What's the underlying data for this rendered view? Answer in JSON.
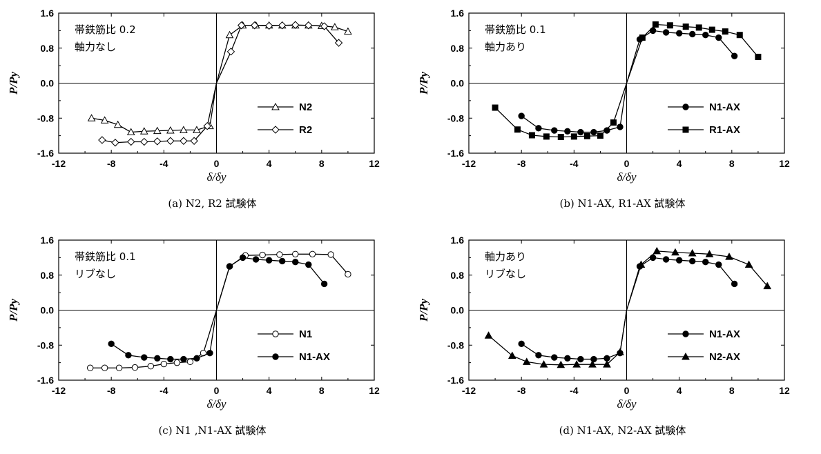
{
  "chart_data": [
    {
      "type": "line",
      "caption": "(a)  N2, R2 試験体",
      "xlabel": "δ/δy",
      "ylabel": "P/Py",
      "xlim": [
        -12,
        12
      ],
      "ylim": [
        -1.6,
        1.6
      ],
      "xticks": [
        "-12",
        "-8",
        "-4",
        "0",
        "4",
        "8",
        "12"
      ],
      "yticks": [
        "1.6",
        "0.8",
        "0.0",
        "-0.8",
        "-1.6"
      ],
      "annotation": [
        "帯鉄筋比 0.2",
        "軸力なし"
      ],
      "series": [
        {
          "name": "N2",
          "marker": "triangle-open",
          "x": [
            -9.5,
            -8.5,
            -7.5,
            -6.5,
            -5.5,
            -4.5,
            -3.5,
            -2.5,
            -1.5,
            -0.5,
            0,
            1,
            2,
            3,
            4,
            5,
            6,
            7,
            8,
            9,
            10
          ],
          "y": [
            -0.8,
            -0.85,
            -0.95,
            -1.12,
            -1.1,
            -1.09,
            -1.08,
            -1.07,
            -1.07,
            -0.98,
            0,
            1.1,
            1.32,
            1.32,
            1.32,
            1.32,
            1.32,
            1.32,
            1.31,
            1.28,
            1.18
          ]
        },
        {
          "name": "R2",
          "marker": "diamond-open",
          "x": [
            -8.7,
            -7.7,
            -6.5,
            -5.5,
            -4.5,
            -3.5,
            -2.5,
            -1.7,
            -0.7,
            0,
            1.1,
            1.9,
            2.9,
            4,
            5,
            6,
            7,
            8.2,
            9.3
          ],
          "y": [
            -1.3,
            -1.36,
            -1.34,
            -1.34,
            -1.33,
            -1.32,
            -1.32,
            -1.32,
            -0.98,
            0,
            0.72,
            1.32,
            1.32,
            1.31,
            1.32,
            1.33,
            1.32,
            1.3,
            0.92
          ]
        }
      ]
    },
    {
      "type": "line",
      "caption": "(b)  N1-AX, R1-AX 試験体",
      "xlabel": "δ/δy",
      "ylabel": "P/Py",
      "xlim": [
        -12,
        12
      ],
      "ylim": [
        -1.6,
        1.6
      ],
      "xticks": [
        "-12",
        "-8",
        "-4",
        "0",
        "4",
        "8",
        "12"
      ],
      "yticks": [
        "1.6",
        "0.8",
        "0.0",
        "-0.8",
        "-1.6"
      ],
      "annotation": [
        "帯鉄筋比 0.1",
        "軸力あり"
      ],
      "series": [
        {
          "name": "N1-AX",
          "marker": "circle-filled",
          "x": [
            -8,
            -6.7,
            -5.5,
            -4.5,
            -3.5,
            -2.5,
            -1.5,
            -0.5,
            0,
            1,
            2,
            3,
            4,
            5,
            6,
            7,
            8.2
          ],
          "y": [
            -0.75,
            -1.03,
            -1.08,
            -1.1,
            -1.12,
            -1.12,
            -1.08,
            -1.0,
            0,
            1.0,
            1.2,
            1.16,
            1.14,
            1.12,
            1.1,
            1.04,
            0.62
          ]
        },
        {
          "name": "R1-AX",
          "marker": "square-filled",
          "x": [
            -10,
            -8.3,
            -7.2,
            -6.1,
            -5,
            -4,
            -3,
            -2,
            -1,
            0,
            1.2,
            2.2,
            3.3,
            4.5,
            5.5,
            6.5,
            7.5,
            8.6,
            10
          ],
          "y": [
            -0.56,
            -1.06,
            -1.19,
            -1.22,
            -1.23,
            -1.22,
            -1.21,
            -1.2,
            -0.9,
            0,
            1.04,
            1.34,
            1.32,
            1.29,
            1.27,
            1.22,
            1.18,
            1.1,
            0.6
          ]
        }
      ]
    },
    {
      "type": "line",
      "caption": "(c)  N1 ,N1-AX 試験体",
      "xlabel": "δ/δy",
      "ylabel": "P/Py",
      "xlim": [
        -12,
        12
      ],
      "ylim": [
        -1.6,
        1.6
      ],
      "xticks": [
        "-12",
        "-8",
        "-4",
        "0",
        "4",
        "8",
        "12"
      ],
      "yticks": [
        "1.6",
        "0.8",
        "0.0",
        "-0.8",
        "-1.6"
      ],
      "annotation": [
        "帯鉄筋比 0.1",
        "リブなし"
      ],
      "series": [
        {
          "name": "N1",
          "marker": "circle-open",
          "x": [
            -9.6,
            -8.5,
            -7.4,
            -6.2,
            -5,
            -4,
            -3,
            -2,
            -1,
            0,
            1,
            2.2,
            3.5,
            4.8,
            6,
            7.3,
            8.7,
            10
          ],
          "y": [
            -1.32,
            -1.32,
            -1.32,
            -1.31,
            -1.28,
            -1.23,
            -1.2,
            -1.18,
            -0.98,
            0,
            1.0,
            1.25,
            1.26,
            1.27,
            1.28,
            1.28,
            1.27,
            0.82
          ]
        },
        {
          "name": "N1-AX",
          "marker": "circle-filled",
          "x": [
            -8,
            -6.7,
            -5.5,
            -4.5,
            -3.5,
            -2.5,
            -1.5,
            -0.5,
            0,
            1,
            2,
            3,
            4,
            5,
            6,
            7,
            8.2
          ],
          "y": [
            -0.77,
            -1.03,
            -1.08,
            -1.1,
            -1.12,
            -1.12,
            -1.1,
            -0.98,
            0,
            1.0,
            1.2,
            1.16,
            1.14,
            1.12,
            1.1,
            1.04,
            0.6
          ]
        }
      ]
    },
    {
      "type": "line",
      "caption": "(d)  N1-AX, N2-AX 試験体",
      "xlabel": "δ/δy",
      "ylabel": "P/Py",
      "xlim": [
        -12,
        12
      ],
      "ylim": [
        -1.6,
        1.6
      ],
      "xticks": [
        "-12",
        "-8",
        "-4",
        "0",
        "4",
        "8",
        "12"
      ],
      "yticks": [
        "1.6",
        "0.8",
        "0.0",
        "-0.8",
        "-1.6"
      ],
      "annotation": [
        "軸力あり",
        "リブなし"
      ],
      "series": [
        {
          "name": "N1-AX",
          "marker": "circle-filled",
          "x": [
            -8,
            -6.7,
            -5.5,
            -4.5,
            -3.5,
            -2.5,
            -1.5,
            -0.5,
            0,
            1,
            2,
            3,
            4,
            5,
            6,
            7,
            8.2
          ],
          "y": [
            -0.77,
            -1.03,
            -1.08,
            -1.1,
            -1.12,
            -1.12,
            -1.1,
            -0.98,
            0,
            1.0,
            1.2,
            1.16,
            1.14,
            1.12,
            1.1,
            1.04,
            0.6
          ]
        },
        {
          "name": "N2-AX",
          "marker": "triangle-filled",
          "x": [
            -10.5,
            -8.7,
            -7.6,
            -6.3,
            -5,
            -3.8,
            -2.6,
            -1.5,
            -0.5,
            0,
            1.1,
            2.3,
            3.7,
            5,
            6.3,
            7.8,
            9.3,
            10.7
          ],
          "y": [
            -0.58,
            -1.04,
            -1.18,
            -1.24,
            -1.25,
            -1.24,
            -1.24,
            -1.24,
            -0.96,
            0,
            1.04,
            1.35,
            1.32,
            1.3,
            1.28,
            1.22,
            1.04,
            0.55
          ]
        }
      ]
    }
  ]
}
